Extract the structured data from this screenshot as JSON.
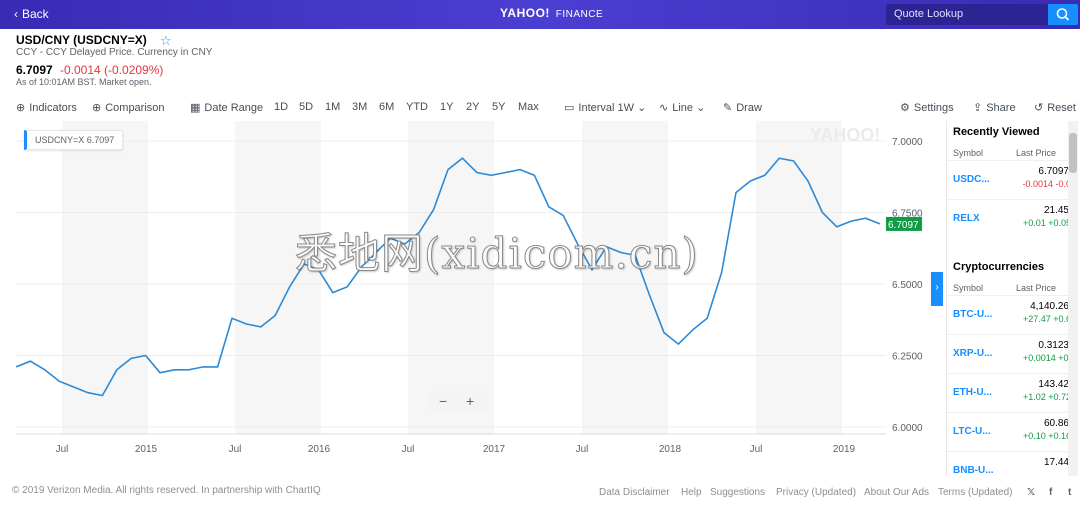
{
  "topbar": {
    "back": "Back",
    "logo": "YAHOO!",
    "logo_suffix": "FINANCE",
    "search_placeholder": "Quote Lookup"
  },
  "quote": {
    "title": "USD/CNY (USDCNY=X)",
    "subtitle": "CCY - CCY Delayed Price. Currency in CNY",
    "price": "6.7097",
    "change": "-0.0014 (-0.0209%)",
    "as_of": "As of 10:01AM BST. Market open."
  },
  "toolbar": {
    "indicators": "Indicators",
    "comparison": "Comparison",
    "date_range": "Date Range",
    "ranges": [
      "1D",
      "5D",
      "1M",
      "3M",
      "6M",
      "YTD",
      "1Y",
      "2Y",
      "5Y",
      "Max"
    ],
    "interval": "Interval",
    "interval_value": "1W",
    "line": "Line",
    "draw": "Draw",
    "settings": "Settings",
    "share": "Share",
    "reset": "Reset"
  },
  "chart_data": {
    "type": "line",
    "legend": "USDCNY=X",
    "legend_value": "6.7097",
    "current_label": "6.7097",
    "ylim": [
      6.0,
      7.0
    ],
    "yticks": [
      "7.0000",
      "6.7500",
      "6.5000",
      "6.2500",
      "6.0000"
    ],
    "xticks": [
      "Jul",
      "2015",
      "Jul",
      "2016",
      "Jul",
      "2017",
      "Jul",
      "2018",
      "Jul",
      "2019"
    ],
    "grid": true,
    "x": [
      "2014-05",
      "2014-06",
      "2014-07",
      "2014-08",
      "2014-09",
      "2014-10",
      "2014-11",
      "2014-12",
      "2015-01",
      "2015-02",
      "2015-03",
      "2015-04",
      "2015-05",
      "2015-06",
      "2015-07",
      "2015-08",
      "2015-09",
      "2015-10",
      "2015-11",
      "2015-12",
      "2016-01",
      "2016-02",
      "2016-03",
      "2016-04",
      "2016-05",
      "2016-06",
      "2016-07",
      "2016-08",
      "2016-09",
      "2016-10",
      "2016-11",
      "2016-12",
      "2017-01",
      "2017-02",
      "2017-03",
      "2017-04",
      "2017-05",
      "2017-06",
      "2017-07",
      "2017-08",
      "2017-09",
      "2017-10",
      "2017-11",
      "2017-12",
      "2018-01",
      "2018-02",
      "2018-03",
      "2018-04",
      "2018-05",
      "2018-06",
      "2018-07",
      "2018-08",
      "2018-09",
      "2018-10",
      "2018-11",
      "2018-12",
      "2019-01",
      "2019-02",
      "2019-03",
      "2019-04",
      "2019-05"
    ],
    "y": [
      6.21,
      6.23,
      6.2,
      6.16,
      6.14,
      6.12,
      6.11,
      6.2,
      6.24,
      6.25,
      6.19,
      6.2,
      6.2,
      6.21,
      6.21,
      6.38,
      6.36,
      6.35,
      6.39,
      6.49,
      6.57,
      6.55,
      6.47,
      6.49,
      6.56,
      6.61,
      6.66,
      6.64,
      6.68,
      6.76,
      6.9,
      6.94,
      6.89,
      6.88,
      6.89,
      6.9,
      6.88,
      6.77,
      6.74,
      6.64,
      6.55,
      6.63,
      6.61,
      6.6,
      6.46,
      6.33,
      6.29,
      6.34,
      6.38,
      6.54,
      6.82,
      6.86,
      6.88,
      6.94,
      6.93,
      6.86,
      6.75,
      6.7,
      6.72,
      6.73,
      6.71
    ]
  },
  "sidebar": {
    "recently_viewed": "Recently Viewed",
    "crypto": "Cryptocurrencies",
    "col_symbol": "Symbol",
    "col_last": "Last Price",
    "recent": [
      {
        "symbol": "USDC...",
        "price": "6.7097",
        "change": "-0.0014 -0.0",
        "dir": "down"
      },
      {
        "symbol": "RELX",
        "price": "21.45",
        "change": "+0.01 +0.05",
        "dir": "up"
      }
    ],
    "cryptos": [
      {
        "symbol": "BTC-U...",
        "price": "4,140.26",
        "change": "+27.47 +0.6",
        "dir": "up"
      },
      {
        "symbol": "XRP-U...",
        "price": "0.3123",
        "change": "+0.0014 +0.",
        "dir": "up"
      },
      {
        "symbol": "ETH-U...",
        "price": "143.42",
        "change": "+1.02 +0.72",
        "dir": "up"
      },
      {
        "symbol": "LTC-U...",
        "price": "60.86",
        "change": "+0.10 +0.16",
        "dir": "up"
      },
      {
        "symbol": "BNB-U...",
        "price": "17.44",
        "change": "",
        "dir": "up"
      }
    ]
  },
  "watermark": "悉地网(xidicom.cn)",
  "footer": {
    "copyright": "© 2019 Verizon Media. All rights reserved. In partnership with ChartIQ",
    "links": [
      "Data Disclaimer",
      "Help",
      "Suggestions",
      "Privacy (Updated)",
      "About Our Ads",
      "Terms (Updated)"
    ]
  },
  "colors": {
    "accent": "#188fff",
    "up": "#109c45",
    "down": "#e5373d",
    "topbar": "#4033c4",
    "line": "#2c8ad6"
  }
}
